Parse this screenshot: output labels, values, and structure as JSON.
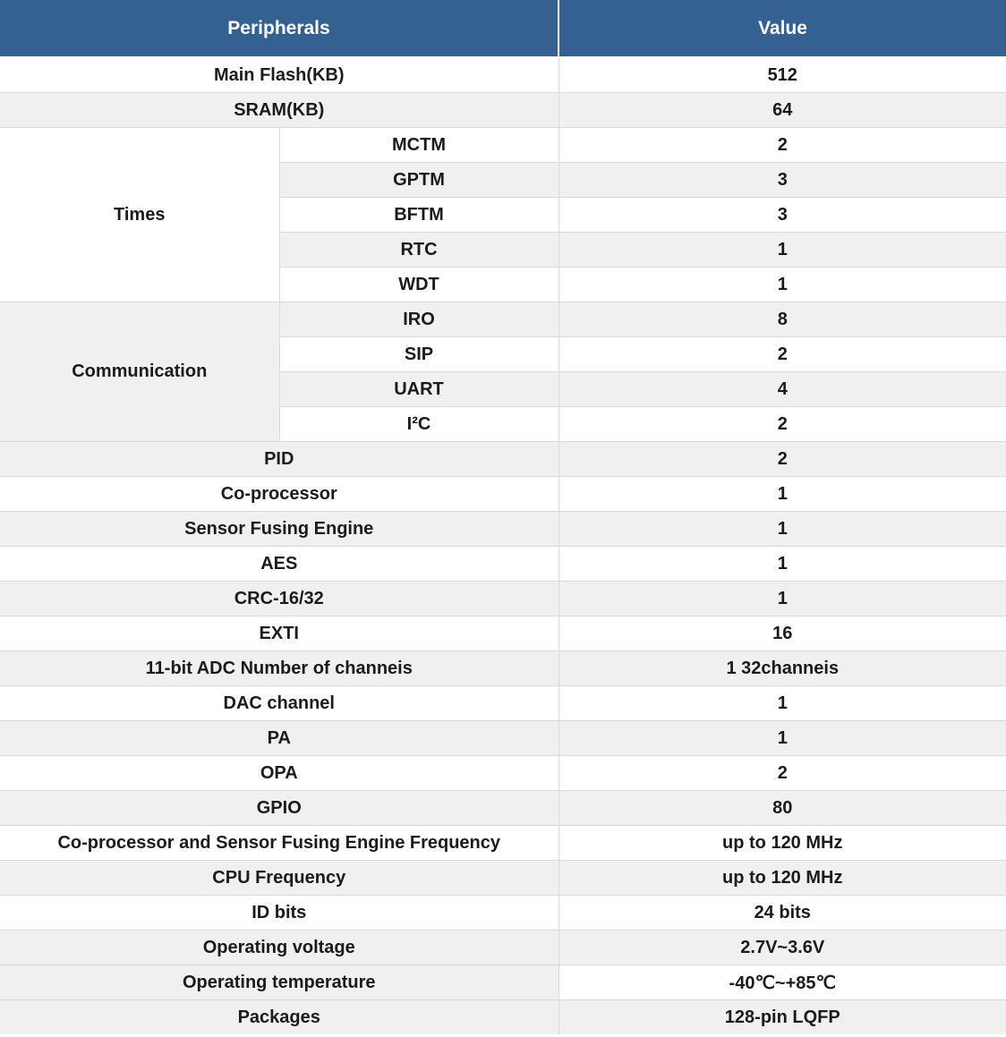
{
  "header": {
    "peripherals": "Peripherals",
    "value": "Value"
  },
  "colors": {
    "header_bg": "#34618F",
    "header_text": "#FFFFFF",
    "row_white": "#FFFFFF",
    "row_gray": "#F0F0F0",
    "border": "#D9D9D9",
    "body_text": "#1B1B1B"
  },
  "top_rows": [
    {
      "label": "Main Flash(KB)",
      "value": "512"
    },
    {
      "label": "SRAM(KB)",
      "value": "64"
    }
  ],
  "groups": [
    {
      "label": "Times",
      "items": [
        {
          "label": "MCTM",
          "value": "2"
        },
        {
          "label": "GPTM",
          "value": "3"
        },
        {
          "label": "BFTM",
          "value": "3"
        },
        {
          "label": "RTC",
          "value": "1"
        },
        {
          "label": "WDT",
          "value": "1"
        }
      ]
    },
    {
      "label": "Communication",
      "items": [
        {
          "label": "IRO",
          "value": "8"
        },
        {
          "label": "SIP",
          "value": "2"
        },
        {
          "label": "UART",
          "value": "4"
        },
        {
          "label": "I²C",
          "value": "2"
        }
      ]
    }
  ],
  "bottom_rows": [
    {
      "label": "PID",
      "value": "2"
    },
    {
      "label": "Co-processor",
      "value": "1"
    },
    {
      "label": "Sensor Fusing Engine",
      "value": "1"
    },
    {
      "label": "AES",
      "value": "1"
    },
    {
      "label": "CRC-16/32",
      "value": "1"
    },
    {
      "label": "EXTI",
      "value": "16"
    },
    {
      "label": "11-bit ADC Number of channeis",
      "value": "1 32channeis"
    },
    {
      "label": "DAC channel",
      "value": "1"
    },
    {
      "label": "PA",
      "value": "1"
    },
    {
      "label": "OPA",
      "value": "2"
    },
    {
      "label": "GPIO",
      "value": "80"
    },
    {
      "label": "Co-processor and Sensor Fusing Engine Frequency",
      "value": "up to 120 MHz"
    },
    {
      "label": "CPU Frequency",
      "value": "up to 120 MHz"
    },
    {
      "label": "ID bits",
      "value": "24 bits"
    },
    {
      "label": "Operating voltage",
      "value": "2.7V~3.6V"
    },
    {
      "label": "Operating temperature",
      "value": "-40℃~+85℃"
    },
    {
      "label": "Packages",
      "value": "128-pin LQFP"
    }
  ],
  "chart_data": {
    "type": "table",
    "title": "",
    "columns": [
      "Peripherals",
      "Value"
    ],
    "rows": [
      {
        "group": "",
        "peripheral": "Main Flash(KB)",
        "value": "512"
      },
      {
        "group": "",
        "peripheral": "SRAM(KB)",
        "value": "64"
      },
      {
        "group": "Times",
        "peripheral": "MCTM",
        "value": "2"
      },
      {
        "group": "Times",
        "peripheral": "GPTM",
        "value": "3"
      },
      {
        "group": "Times",
        "peripheral": "BFTM",
        "value": "3"
      },
      {
        "group": "Times",
        "peripheral": "RTC",
        "value": "1"
      },
      {
        "group": "Times",
        "peripheral": "WDT",
        "value": "1"
      },
      {
        "group": "Communication",
        "peripheral": "IRO",
        "value": "8"
      },
      {
        "group": "Communication",
        "peripheral": "SIP",
        "value": "2"
      },
      {
        "group": "Communication",
        "peripheral": "UART",
        "value": "4"
      },
      {
        "group": "Communication",
        "peripheral": "I²C",
        "value": "2"
      },
      {
        "group": "",
        "peripheral": "PID",
        "value": "2"
      },
      {
        "group": "",
        "peripheral": "Co-processor",
        "value": "1"
      },
      {
        "group": "",
        "peripheral": "Sensor Fusing Engine",
        "value": "1"
      },
      {
        "group": "",
        "peripheral": "AES",
        "value": "1"
      },
      {
        "group": "",
        "peripheral": "CRC-16/32",
        "value": "1"
      },
      {
        "group": "",
        "peripheral": "EXTI",
        "value": "16"
      },
      {
        "group": "",
        "peripheral": "11-bit ADC Number of channeis",
        "value": "1 32channeis"
      },
      {
        "group": "",
        "peripheral": "DAC channel",
        "value": "1"
      },
      {
        "group": "",
        "peripheral": "PA",
        "value": "1"
      },
      {
        "group": "",
        "peripheral": "OPA",
        "value": "2"
      },
      {
        "group": "",
        "peripheral": "GPIO",
        "value": "80"
      },
      {
        "group": "",
        "peripheral": "Co-processor and Sensor Fusing Engine Frequency",
        "value": "up to 120 MHz"
      },
      {
        "group": "",
        "peripheral": "CPU Frequency",
        "value": "up to 120 MHz"
      },
      {
        "group": "",
        "peripheral": "ID bits",
        "value": "24 bits"
      },
      {
        "group": "",
        "peripheral": "Operating voltage",
        "value": "2.7V~3.6V"
      },
      {
        "group": "",
        "peripheral": "Operating temperature",
        "value": "-40℃~+85℃"
      },
      {
        "group": "",
        "peripheral": "Packages",
        "value": "128-pin LQFP"
      }
    ]
  }
}
